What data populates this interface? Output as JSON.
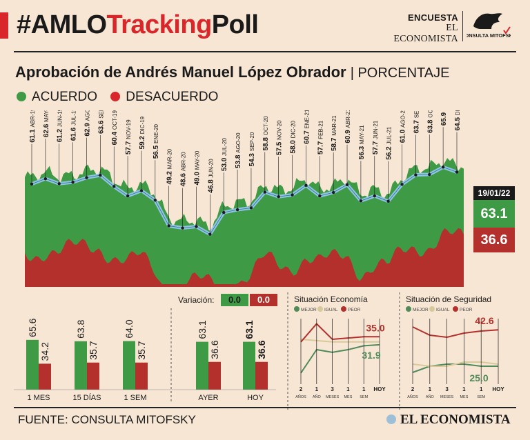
{
  "header": {
    "title_part1": "#AMLO",
    "title_part2": "Tracking",
    "title_part3": "Poll",
    "brand_line1": "ENCUESTA",
    "brand_line2": "EL ECONOMISTA",
    "logo_text": "CONSULTA MITOFSKY"
  },
  "subtitle": {
    "main": "Aprobación de Andrés Manuel López Obrador",
    "suffix": "| PORCENTAJE"
  },
  "legend": {
    "agree": "ACUERDO",
    "disagree": "DESACUERDO"
  },
  "colors": {
    "agree": "#3f9a45",
    "disagree": "#b3302d",
    "accent_red": "#d8262b",
    "line": "#8ec6e6",
    "background": "#f7e6d3"
  },
  "latest": {
    "date": "19/01/22",
    "agree": "63.1",
    "disagree": "36.6"
  },
  "chart_data": [
    {
      "type": "line",
      "title": "Aprobación de Andrés Manuel López Obrador",
      "unit": "PORCENTAJE",
      "ylim": [
        0,
        100
      ],
      "points": [
        {
          "value": "61.1",
          "label": "ABR-19"
        },
        {
          "value": "62.6",
          "label": "MAY-19"
        },
        {
          "value": "61.2",
          "label": "JUN-19"
        },
        {
          "value": "61.6",
          "label": "JUL-19"
        },
        {
          "value": "62.9",
          "label": "AGO-19"
        },
        {
          "value": "63.6",
          "label": "SEP-19"
        },
        {
          "value": "60.4",
          "label": "OCT-19"
        },
        {
          "value": "57.7",
          "label": "NOV-19"
        },
        {
          "value": "59.2",
          "label": "DIC-19"
        },
        {
          "value": "56.5",
          "label": "ENE-20"
        },
        {
          "value": "49.2",
          "label": "MAR-20"
        },
        {
          "value": "48.6",
          "label": "ABR-20"
        },
        {
          "value": "49.0",
          "label": "MAY-20"
        },
        {
          "value": "46.8",
          "label": "JUN-20"
        },
        {
          "value": "53.0",
          "label": "JUL-20"
        },
        {
          "value": "53.8",
          "label": "AGO-20"
        },
        {
          "value": "54.3",
          "label": "SEP-20"
        },
        {
          "value": "58.8",
          "label": "OCT-20"
        },
        {
          "value": "57.5",
          "label": "NOV-20"
        },
        {
          "value": "58.0",
          "label": "DIC-20"
        },
        {
          "value": "60.7",
          "label": "ENE-21"
        },
        {
          "value": "57.7",
          "label": "FEB-21"
        },
        {
          "value": "58.7",
          "label": "MAR-21"
        },
        {
          "value": "60.9",
          "label": "ABR-21"
        },
        {
          "value": "56.3",
          "label": "MAY-21"
        },
        {
          "value": "57.7",
          "label": "JUN-21"
        },
        {
          "value": "56.2",
          "label": "JUL-21"
        },
        {
          "value": "61.0",
          "label": "AGO-21"
        },
        {
          "value": "63.7",
          "label": "SEP-21"
        },
        {
          "value": "63.8",
          "label": "OCT-21"
        },
        {
          "value": "65.9",
          "label": "NOV-21"
        },
        {
          "value": "64.5",
          "label": "DIC-21"
        }
      ],
      "agree_latest": 63.1,
      "disagree_latest": 36.6
    },
    {
      "type": "bar",
      "variation_label": "Variación:",
      "variation_agree": "0.0",
      "variation_disagree": "0.0",
      "categories": [
        "1 MES",
        "15 DÍAS",
        "1 SEM",
        "AYER",
        "HOY"
      ],
      "series": [
        {
          "name": "ACUERDO",
          "values": [
            "65.6",
            "63.8",
            "64.0",
            "63.1",
            "63.1"
          ]
        },
        {
          "name": "DESACUERDO",
          "values": [
            "34.2",
            "35.7",
            "35.7",
            "36.6",
            "36.6"
          ]
        }
      ]
    },
    {
      "type": "line",
      "title": "Situación Economía",
      "legend": [
        "MEJOR",
        "IGUAL",
        "PEOR"
      ],
      "x": [
        "2",
        "1",
        "3",
        "1",
        "1",
        "HOY"
      ],
      "x_sub": [
        "AÑOS",
        "AÑO",
        "MESES",
        "MES",
        "SEM",
        ""
      ],
      "series": [
        {
          "name": "MEJOR",
          "values": [
            21,
            30,
            29,
            30,
            31.5,
            31.9
          ]
        },
        {
          "name": "IGUAL",
          "values": [
            34,
            33.5,
            33,
            33,
            33,
            33
          ]
        },
        {
          "name": "PEOR",
          "values": [
            33,
            40,
            34,
            34.5,
            35,
            35.0
          ]
        }
      ],
      "labels": {
        "peor_last": "35.0",
        "mejor_last": "31.9"
      }
    },
    {
      "type": "line",
      "title": "Situación de Seguridad",
      "legend": [
        "MEJOR",
        "IGUAL",
        "PEOR"
      ],
      "x": [
        "2",
        "1",
        "3",
        "1",
        "1",
        "HOY"
      ],
      "x_sub": [
        "AÑOS",
        "AÑO",
        "MESES",
        "MES",
        "SEM",
        ""
      ],
      "series": [
        {
          "name": "MEJOR",
          "values": [
            22,
            25,
            26,
            26,
            25,
            25.0
          ]
        },
        {
          "name": "IGUAL",
          "values": [
            26,
            25,
            25,
            27,
            27,
            26
          ]
        },
        {
          "name": "PEOR",
          "values": [
            44,
            40,
            39,
            41,
            42,
            42.6
          ]
        }
      ],
      "labels": {
        "peor_last": "42.6",
        "mejor_last": "25.0"
      }
    }
  ],
  "footer": {
    "source": "FUENTE: CONSULTA MITOFSKY",
    "brand": "EL ECONOMISTA"
  }
}
